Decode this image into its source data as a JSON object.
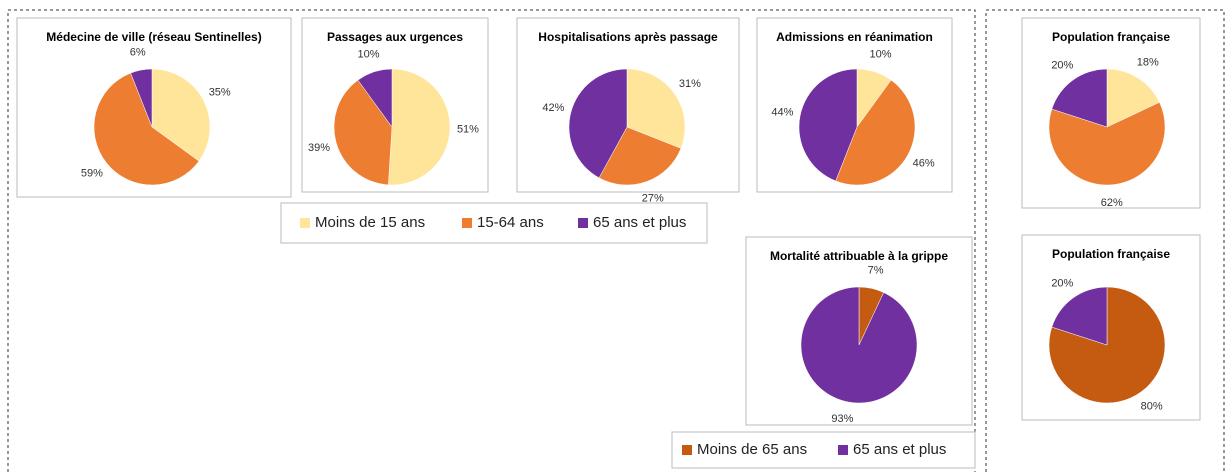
{
  "legends": [
    {
      "entries": [
        "Moins de 15 ans",
        "15-64 ans",
        "65 ans et plus"
      ],
      "colors": [
        "#fee599",
        "#ed7d31",
        "#7030a0"
      ]
    },
    {
      "entries": [
        "Moins de 65 ans",
        "65 ans et plus"
      ],
      "colors": [
        "#c55a11",
        "#7030a0"
      ]
    }
  ],
  "chart_data": [
    {
      "type": "pie",
      "title": "Médecine de ville (réseau Sentinelles)",
      "values": [
        35,
        59,
        6
      ],
      "value_labels": [
        "35%",
        "59%",
        "6%"
      ],
      "legend": 0
    },
    {
      "type": "pie",
      "title": "Passages aux urgences",
      "values": [
        51,
        39,
        10
      ],
      "value_labels": [
        "51%",
        "39%",
        "10%"
      ],
      "legend": 0
    },
    {
      "type": "pie",
      "title": "Hospitalisations après passage",
      "values": [
        31,
        27,
        42
      ],
      "value_labels": [
        "31%",
        "27%",
        "42%"
      ],
      "legend": 0
    },
    {
      "type": "pie",
      "title": "Admissions en réanimation",
      "values": [
        10,
        46,
        44
      ],
      "value_labels": [
        "10%",
        "46%",
        "44%"
      ],
      "legend": 0
    },
    {
      "type": "pie",
      "title": "Population française",
      "values": [
        18,
        62,
        20
      ],
      "value_labels": [
        "18%",
        "62%",
        "20%"
      ],
      "legend": 0
    },
    {
      "type": "pie",
      "title": "Mortalité attribuable à la grippe",
      "values": [
        7,
        93
      ],
      "value_labels": [
        "7%",
        "93%"
      ],
      "legend": 1
    },
    {
      "type": "pie",
      "title": "Population française",
      "values": [
        80,
        20
      ],
      "value_labels": [
        "80%",
        "20%"
      ],
      "legend": 1
    }
  ]
}
